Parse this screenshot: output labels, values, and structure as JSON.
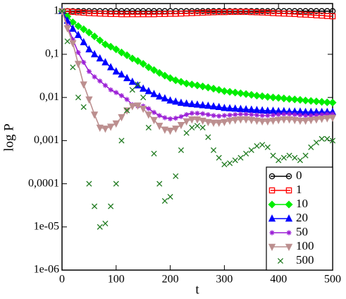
{
  "chart_data": {
    "type": "line",
    "log_y": true,
    "xlabel": "t",
    "ylabel": "log P",
    "x": [
      0,
      10,
      20,
      30,
      40,
      50,
      60,
      70,
      80,
      90,
      100,
      110,
      120,
      130,
      140,
      150,
      160,
      170,
      180,
      190,
      200,
      210,
      220,
      230,
      240,
      250,
      260,
      270,
      280,
      290,
      300,
      310,
      320,
      330,
      340,
      350,
      360,
      370,
      380,
      390,
      400,
      410,
      420,
      430,
      440,
      450,
      460,
      470,
      480,
      490,
      500
    ],
    "xlim": [
      0,
      500
    ],
    "xticks": [
      0,
      100,
      200,
      300,
      400,
      500
    ],
    "ylim": [
      1e-06,
      1.5
    ],
    "yticks": [
      {
        "value": 1e-06,
        "label": "1e-06"
      },
      {
        "value": 1e-05,
        "label": "1e-05"
      },
      {
        "value": 0.0001,
        "label": "0,0001"
      },
      {
        "value": 0.001,
        "label": "0,001"
      },
      {
        "value": 0.01,
        "label": "0,01"
      },
      {
        "value": 0.1,
        "label": "0,1"
      },
      1
    ],
    "legend": "lower right",
    "series": [
      {
        "name": "0",
        "color": "#000000",
        "marker": "circle",
        "line": true,
        "values": [
          1,
          1,
          1,
          1,
          1,
          1,
          1,
          1,
          1,
          1,
          1,
          1,
          1,
          1,
          1,
          1,
          1,
          1,
          1,
          1,
          1,
          1,
          1,
          1,
          1,
          1,
          1,
          1,
          1,
          1,
          1,
          1,
          1,
          1,
          1,
          1,
          1,
          1,
          1,
          1,
          1,
          1,
          1,
          1,
          1,
          1,
          1,
          1,
          1,
          1,
          1
        ]
      },
      {
        "name": "1",
        "color": "#ff0000",
        "marker": "square",
        "line": true,
        "values": [
          1,
          0.98,
          0.96,
          0.94,
          0.92,
          0.9,
          0.89,
          0.88,
          0.87,
          0.86,
          0.86,
          0.85,
          0.85,
          0.85,
          0.85,
          0.85,
          0.85,
          0.85,
          0.86,
          0.86,
          0.87,
          0.87,
          0.88,
          0.89,
          0.9,
          0.91,
          0.92,
          0.93,
          0.94,
          0.95,
          0.95,
          0.96,
          0.96,
          0.96,
          0.96,
          0.95,
          0.94,
          0.93,
          0.92,
          0.9,
          0.89,
          0.88,
          0.87,
          0.86,
          0.84,
          0.83,
          0.82,
          0.8,
          0.79,
          0.77,
          0.76
        ]
      },
      {
        "name": "10",
        "color": "#00ee00",
        "marker": "diamond",
        "line": true,
        "values": [
          1,
          0.75,
          0.55,
          0.45,
          0.38,
          0.32,
          0.26,
          0.21,
          0.17,
          0.15,
          0.13,
          0.11,
          0.095,
          0.08,
          0.07,
          0.06,
          0.05,
          0.043,
          0.037,
          0.032,
          0.028,
          0.025,
          0.023,
          0.021,
          0.02,
          0.019,
          0.018,
          0.017,
          0.016,
          0.015,
          0.014,
          0.0135,
          0.013,
          0.0125,
          0.012,
          0.0115,
          0.011,
          0.0107,
          0.0103,
          0.01,
          0.0098,
          0.0095,
          0.0092,
          0.009,
          0.0088,
          0.0085,
          0.0083,
          0.0081,
          0.0079,
          0.0077,
          0.0076
        ]
      },
      {
        "name": "20",
        "color": "#0000ff",
        "marker": "triangle",
        "line": true,
        "values": [
          1,
          0.6,
          0.39,
          0.28,
          0.19,
          0.13,
          0.1,
          0.08,
          0.065,
          0.05,
          0.04,
          0.034,
          0.028,
          0.023,
          0.019,
          0.016,
          0.014,
          0.012,
          0.0105,
          0.0095,
          0.0085,
          0.008,
          0.0075,
          0.0072,
          0.007,
          0.0068,
          0.0066,
          0.0064,
          0.0062,
          0.006,
          0.0057,
          0.0056,
          0.0055,
          0.0054,
          0.0053,
          0.0052,
          0.0051,
          0.005,
          0.0049,
          0.0049,
          0.0048,
          0.0048,
          0.0047,
          0.0047,
          0.0047,
          0.0046,
          0.0046,
          0.0046,
          0.0046,
          0.0046,
          0.0046
        ]
      },
      {
        "name": "50",
        "color": "#9b1fd6",
        "marker": "star",
        "line": true,
        "values": [
          1,
          0.45,
          0.22,
          0.11,
          0.065,
          0.04,
          0.03,
          0.024,
          0.019,
          0.015,
          0.013,
          0.011,
          0.009,
          0.0068,
          0.0063,
          0.0063,
          0.0055,
          0.0045,
          0.0038,
          0.0034,
          0.0032,
          0.0033,
          0.0036,
          0.004,
          0.0043,
          0.0043,
          0.0042,
          0.004,
          0.0038,
          0.0037,
          0.0038,
          0.0039,
          0.004,
          0.0041,
          0.0041,
          0.004,
          0.0039,
          0.0038,
          0.0038,
          0.0039,
          0.004,
          0.0041,
          0.0041,
          0.004,
          0.0039,
          0.0038,
          0.0038,
          0.0039,
          0.004,
          0.0041,
          0.0041
        ]
      },
      {
        "name": "100",
        "color": "#bc8f8f",
        "marker": "triangle-down",
        "line": true,
        "values": [
          1,
          0.4,
          0.18,
          0.06,
          0.02,
          0.009,
          0.004,
          0.002,
          0.0019,
          0.0021,
          0.0025,
          0.0035,
          0.005,
          0.0063,
          0.0065,
          0.0055,
          0.004,
          0.003,
          0.0022,
          0.0018,
          0.0017,
          0.0019,
          0.0023,
          0.0028,
          0.0031,
          0.0031,
          0.0029,
          0.0027,
          0.0026,
          0.0026,
          0.0027,
          0.0029,
          0.003,
          0.0031,
          0.0031,
          0.003,
          0.0029,
          0.0028,
          0.0028,
          0.0029,
          0.003,
          0.0031,
          0.0031,
          0.003,
          0.0029,
          0.0029,
          0.003,
          0.0031,
          0.0032,
          0.0033,
          0.0034
        ]
      },
      {
        "name": "500",
        "color": "#1f7a1f",
        "marker": "x",
        "line": false,
        "values": [
          1,
          0.2,
          0.05,
          0.01,
          0.006,
          0.0001,
          3e-05,
          1e-05,
          1.2e-05,
          3e-05,
          0.0001,
          0.001,
          0.005,
          0.015,
          0.02,
          0.01,
          0.002,
          0.0005,
          0.0001,
          4e-05,
          5e-05,
          0.00015,
          0.0006,
          0.0015,
          0.002,
          0.0022,
          0.002,
          0.0012,
          0.0006,
          0.0004,
          0.00028,
          0.0003,
          0.00035,
          0.0004,
          0.0005,
          0.0006,
          0.00075,
          0.0008,
          0.0007,
          0.00045,
          0.00035,
          0.0004,
          0.00045,
          0.0004,
          0.00035,
          0.00045,
          0.0007,
          0.0009,
          0.0011,
          0.0011,
          0.001
        ]
      }
    ]
  }
}
